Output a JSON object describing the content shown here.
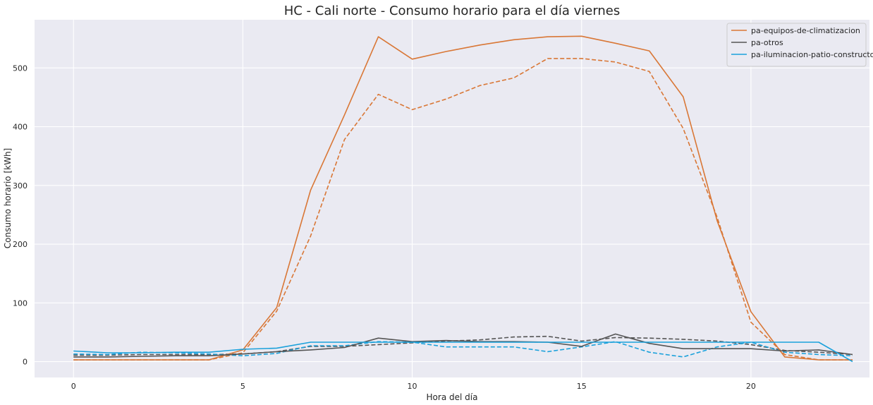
{
  "chart_data": {
    "type": "line",
    "title": "HC - Cali norte - Consumo horario para el día viernes",
    "xlabel": "Hora del día",
    "ylabel": "Consumo horario [kWh]",
    "xlim": [
      -1.15,
      23.5
    ],
    "ylim": [
      -27,
      582
    ],
    "xticks": [
      0,
      5,
      10,
      15,
      20
    ],
    "yticks": [
      0,
      100,
      200,
      300,
      400,
      500
    ],
    "grid": true,
    "legend_position": "top-right",
    "background": "#EAEAF2",
    "x": [
      0,
      1,
      2,
      3,
      4,
      5,
      6,
      7,
      8,
      9,
      10,
      11,
      12,
      13,
      14,
      15,
      16,
      17,
      18,
      19,
      20,
      21,
      22,
      23
    ],
    "series": [
      {
        "name": "pa-equipos-de-climatizacion",
        "color": "#D97736",
        "style": "solid",
        "in_legend": true,
        "values": [
          3,
          3,
          3,
          3,
          3,
          20,
          92,
          292,
          420,
          553,
          515,
          528,
          539,
          548,
          553,
          554,
          542,
          529,
          451,
          240,
          85,
          8,
          3,
          3
        ]
      },
      {
        "name": "pa-otros",
        "color": "#555555",
        "style": "solid",
        "in_legend": true,
        "values": [
          8,
          8,
          9,
          10,
          10,
          13,
          17,
          20,
          24,
          40,
          34,
          36,
          34,
          34,
          33,
          26,
          47,
          31,
          22,
          22,
          22,
          18,
          20,
          12
        ]
      },
      {
        "name": "pa-iluminacion-patio-constructor",
        "color": "#1BA1DB",
        "style": "solid",
        "in_legend": true,
        "values": [
          18,
          15,
          15,
          16,
          16,
          21,
          23,
          33,
          33,
          33,
          33,
          33,
          33,
          33,
          33,
          33,
          33,
          33,
          33,
          33,
          33,
          33,
          33,
          0
        ]
      },
      {
        "name": "",
        "color": "#D97736",
        "style": "dashed",
        "in_legend": false,
        "values": [
          3,
          3,
          3,
          3,
          3,
          15,
          86,
          214,
          378,
          455,
          429,
          447,
          470,
          483,
          516,
          516,
          510,
          494,
          397,
          246,
          67,
          12,
          3,
          3
        ]
      },
      {
        "name": "",
        "color": "#555555",
        "style": "dashed",
        "in_legend": false,
        "values": [
          11,
          11,
          12,
          12,
          12,
          13,
          17,
          26,
          26,
          29,
          32,
          35,
          37,
          42,
          43,
          35,
          41,
          40,
          38,
          35,
          29,
          19,
          16,
          12
        ]
      },
      {
        "name": "",
        "color": "#1BA1DB",
        "style": "dashed",
        "in_legend": false,
        "values": [
          13,
          12,
          16,
          15,
          13,
          10,
          14,
          27,
          27,
          34,
          33,
          25,
          25,
          25,
          17,
          25,
          34,
          16,
          8,
          25,
          33,
          16,
          12,
          10
        ]
      }
    ]
  }
}
